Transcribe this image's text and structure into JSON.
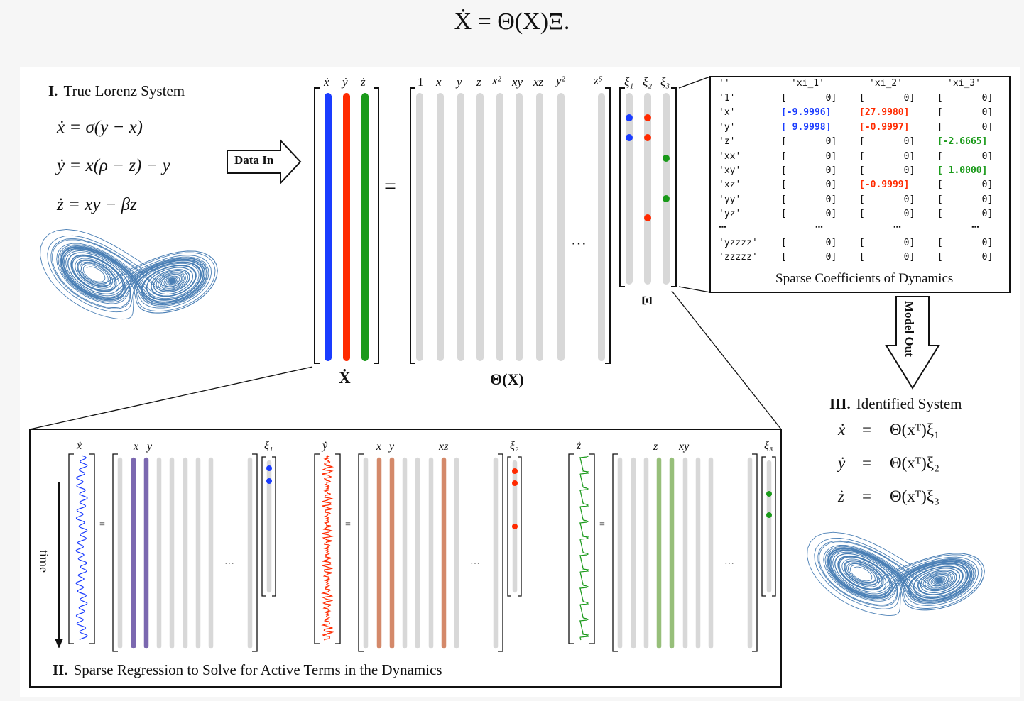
{
  "top_equation": "Ẋ = Θ(X)Ξ.",
  "section1": {
    "number": "I.",
    "title": "True Lorenz System",
    "equations": [
      "ẋ = σ(y − x)",
      "ẏ = x(ρ − z) − y",
      "ż = xy − βz"
    ]
  },
  "data_in_label": "Data In",
  "model_out_label": "Model Out",
  "matrix": {
    "xdot_headers": [
      "ẋ",
      "ẏ",
      "ż"
    ],
    "xdot_label": "Ẋ",
    "equals": "=",
    "theta_headers": [
      "1",
      "x",
      "y",
      "z",
      "x²",
      "xy",
      "xz",
      "y²",
      "z⁵"
    ],
    "theta_label": "Θ(X)",
    "ellipsis": "⋯",
    "xi_headers": [
      "ξ₁",
      "ξ₂",
      "ξ₃"
    ],
    "xi_label": "Ξ"
  },
  "coefficients": {
    "header": [
      "''",
      "'xi_1'",
      "'xi_2'",
      "'xi_3'"
    ],
    "rows": [
      [
        "'1'",
        "[       0]",
        "[       0]",
        "[       0]"
      ],
      [
        "'x'",
        "[-9.9996]",
        "[27.9980]",
        "[       0]"
      ],
      [
        "'y'",
        "[ 9.9998]",
        "[-0.9997]",
        "[       0]"
      ],
      [
        "'z'",
        "[       0]",
        "[       0]",
        "[-2.6665]"
      ],
      [
        "'xx'",
        "[       0]",
        "[       0]",
        "[       0]"
      ],
      [
        "'xy'",
        "[       0]",
        "[       0]",
        "[ 1.0000]"
      ],
      [
        "'xz'",
        "[       0]",
        "[-0.9999]",
        "[       0]"
      ],
      [
        "'yy'",
        "[       0]",
        "[       0]",
        "[       0]"
      ],
      [
        "'yz'",
        "[       0]",
        "[       0]",
        "[       0]"
      ],
      [
        "⋯",
        "⋯",
        "⋯",
        "⋯"
      ],
      [
        "'yzzzz'",
        "[       0]",
        "[       0]",
        "[       0]"
      ],
      [
        "'zzzzz'",
        "[       0]",
        "[       0]",
        "[       0]"
      ]
    ],
    "caption": "Sparse Coefficients of Dynamics"
  },
  "section3": {
    "number": "III.",
    "title": "Identified System",
    "equations": [
      {
        "lhs": "ẋ",
        "rhs": "Θ(xᵀ)ξ₁"
      },
      {
        "lhs": "ẏ",
        "rhs": "Θ(xᵀ)ξ₂"
      },
      {
        "lhs": "ż",
        "rhs": "Θ(xᵀ)ξ₃"
      }
    ]
  },
  "section2": {
    "number": "II.",
    "title": "Sparse Regression to Solve for Active Terms in the Dynamics",
    "time_label": "time",
    "panels": [
      {
        "lhs": "ẋ",
        "active_labels": [
          "x",
          "y"
        ],
        "xi": "ξ₁"
      },
      {
        "lhs": "ẏ",
        "active_labels": [
          "x",
          "y",
          "xz"
        ],
        "xi": "ξ₂"
      },
      {
        "lhs": "ż",
        "active_labels": [
          "z",
          "xy"
        ],
        "xi": "ξ₃"
      }
    ],
    "equals": "=",
    "ellipsis": "⋯"
  },
  "colors": {
    "blue": "#1a3cff",
    "red": "#ff2a00",
    "green": "#1a9a1a",
    "purple": "#7b68b0",
    "orange": "#d4896a",
    "light_green": "#97bf7a",
    "gray_column": "#d8d8d8",
    "attractor": "#4a7fb5"
  }
}
